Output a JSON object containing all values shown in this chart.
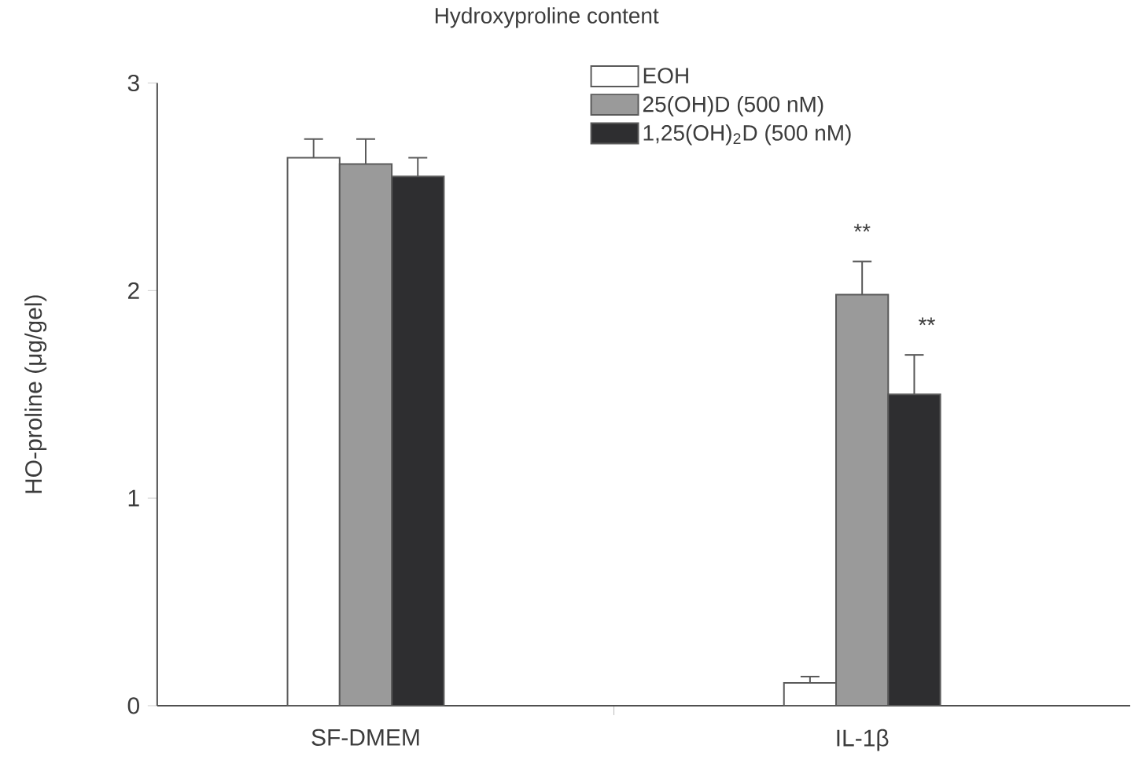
{
  "chart_data": {
    "type": "bar",
    "title": "Hydroxyproline content",
    "ylabel": "HO-proline (μg/gel)",
    "categories": [
      "SF-DMEM",
      "IL-1β"
    ],
    "series": [
      {
        "name": "EOH",
        "color": "#ffffff",
        "values": [
          2.64,
          0.11
        ],
        "errors": [
          0.09,
          0.03
        ]
      },
      {
        "name": "25(OH)D (500 nM)",
        "color": "#9a9a9a",
        "values": [
          2.61,
          1.98
        ],
        "errors": [
          0.12,
          0.16
        ]
      },
      {
        "name": "1,25(OH)$_{2}$D (500 nM)",
        "color": "#2e2e30",
        "values": [
          2.55,
          1.5
        ],
        "errors": [
          0.09,
          0.19
        ]
      }
    ],
    "ylim": [
      0,
      3
    ],
    "yticks": [
      0,
      1,
      2,
      3
    ],
    "legend": "top",
    "annotations": [
      "**",
      "**"
    ]
  }
}
